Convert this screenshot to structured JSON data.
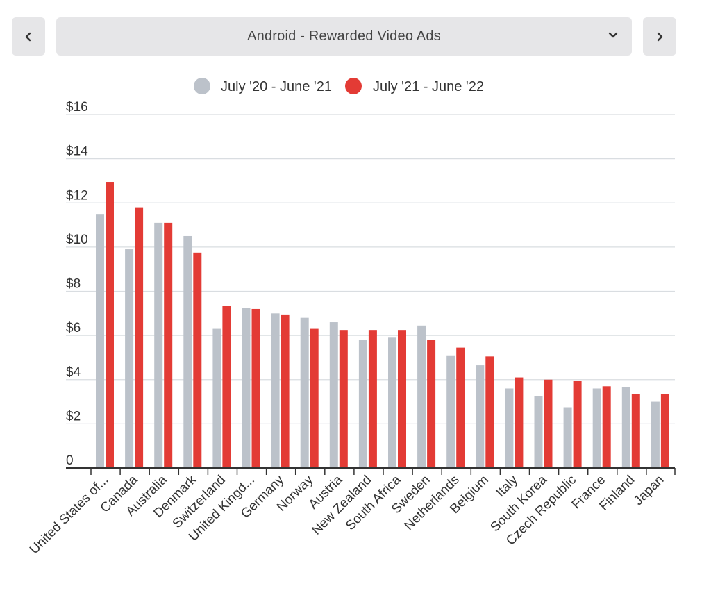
{
  "nav": {
    "prev_icon": "chevron-left-icon",
    "next_icon": "chevron-right-icon",
    "dropdown_icon": "chevron-down-icon"
  },
  "selector": {
    "label": "Android - Rewarded Video Ads"
  },
  "colors": {
    "series_1": "#bcc2ca",
    "series_2": "#e33b35"
  },
  "chart_data": {
    "type": "bar",
    "title": "",
    "xlabel": "",
    "ylabel": "",
    "ylim": [
      0,
      16
    ],
    "yticks": [
      {
        "value": 0,
        "label": "0"
      },
      {
        "value": 2,
        "label": "$2"
      },
      {
        "value": 4,
        "label": "$4"
      },
      {
        "value": 6,
        "label": "$6"
      },
      {
        "value": 8,
        "label": "$8"
      },
      {
        "value": 10,
        "label": "$10"
      },
      {
        "value": 12,
        "label": "$12"
      },
      {
        "value": 14,
        "label": "$14"
      },
      {
        "value": 16,
        "label": "$16"
      }
    ],
    "grid": true,
    "legend_position": "top-center",
    "categories": [
      "United States of...",
      "Canada",
      "Australia",
      "Denmark",
      "Switzerland",
      "United Kingd...",
      "Germany",
      "Norway",
      "Austria",
      "New Zealand",
      "South Africa",
      "Sweden",
      "Netherlands",
      "Belgium",
      "Italy",
      "South Korea",
      "Czech Republic",
      "France",
      "Finland",
      "Japan"
    ],
    "series": [
      {
        "name": "July '20 - June '21",
        "values": [
          11.5,
          9.9,
          11.1,
          10.5,
          6.3,
          7.25,
          7.0,
          6.8,
          6.6,
          5.8,
          5.9,
          6.45,
          5.1,
          4.65,
          3.6,
          3.25,
          2.75,
          3.6,
          3.65,
          3.0
        ]
      },
      {
        "name": "July '21 - June '22",
        "values": [
          12.95,
          11.8,
          11.1,
          9.75,
          7.35,
          7.2,
          6.95,
          6.3,
          6.25,
          6.25,
          6.25,
          5.8,
          5.45,
          5.05,
          4.1,
          4.0,
          3.95,
          3.7,
          3.35,
          3.35
        ]
      }
    ]
  }
}
